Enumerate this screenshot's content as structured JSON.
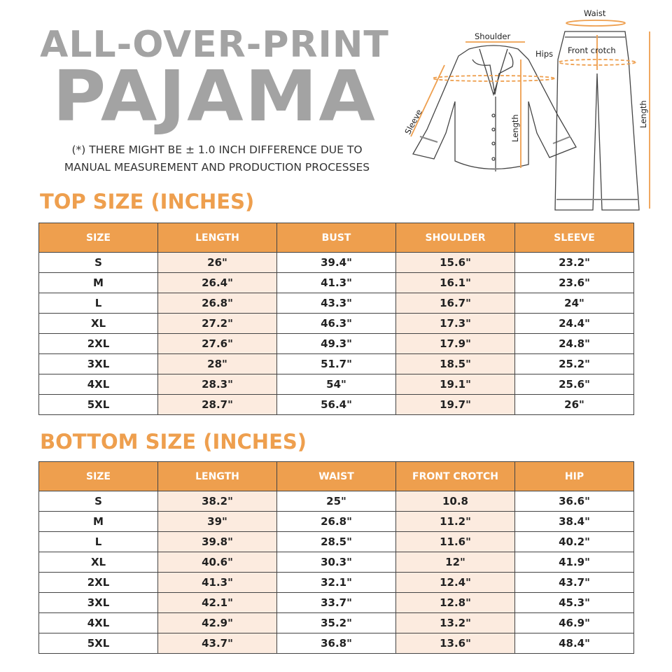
{
  "header": {
    "title_line1": "ALL-OVER-PRINT",
    "title_line2": "PAJAMA",
    "note_line1": "(*) THERE MIGHT BE ± 1.0 INCH DIFFERENCE DUE TO",
    "note_line2": "MANUAL MEASUREMENT AND PRODUCTION PROCESSES"
  },
  "diagram": {
    "labels": {
      "shoulder": "Shoulder",
      "sleeve": "Sleeve",
      "top_length": "Length",
      "waist": "Waist",
      "hips": "Hips",
      "front_crotch": "Front crotch",
      "bottom_length": "Length"
    }
  },
  "colors": {
    "accent": "#ee9f4e",
    "title_gray": "#a3a3a3",
    "shaded_column": "#fcebdf"
  },
  "top_table": {
    "title": "TOP SIZE (INCHES)",
    "headers": [
      "SIZE",
      "LENGTH",
      "BUST",
      "SHOULDER",
      "SLEEVE"
    ],
    "rows": [
      [
        "S",
        "26\"",
        "39.4\"",
        "15.6\"",
        "23.2\""
      ],
      [
        "M",
        "26.4\"",
        "41.3\"",
        "16.1\"",
        "23.6\""
      ],
      [
        "L",
        "26.8\"",
        "43.3\"",
        "16.7\"",
        "24\""
      ],
      [
        "XL",
        "27.2\"",
        "46.3\"",
        "17.3\"",
        "24.4\""
      ],
      [
        "2XL",
        "27.6\"",
        "49.3\"",
        "17.9\"",
        "24.8\""
      ],
      [
        "3XL",
        "28\"",
        "51.7\"",
        "18.5\"",
        "25.2\""
      ],
      [
        "4XL",
        "28.3\"",
        "54\"",
        "19.1\"",
        "25.6\""
      ],
      [
        "5XL",
        "28.7\"",
        "56.4\"",
        "19.7\"",
        "26\""
      ]
    ]
  },
  "bottom_table": {
    "title": "BOTTOM SIZE (INCHES)",
    "headers": [
      "SIZE",
      "LENGTH",
      "WAIST",
      "FRONT CROTCH",
      "HIP"
    ],
    "rows": [
      [
        "S",
        "38.2\"",
        "25\"",
        "10.8",
        "36.6\""
      ],
      [
        "M",
        "39\"",
        "26.8\"",
        "11.2\"",
        "38.4\""
      ],
      [
        "L",
        "39.8\"",
        "28.5\"",
        "11.6\"",
        "40.2\""
      ],
      [
        "XL",
        "40.6\"",
        "30.3\"",
        "12\"",
        "41.9\""
      ],
      [
        "2XL",
        "41.3\"",
        "32.1\"",
        "12.4\"",
        "43.7\""
      ],
      [
        "3XL",
        "42.1\"",
        "33.7\"",
        "12.8\"",
        "45.3\""
      ],
      [
        "4XL",
        "42.9\"",
        "35.2\"",
        "13.2\"",
        "46.9\""
      ],
      [
        "5XL",
        "43.7\"",
        "36.8\"",
        "13.6\"",
        "48.4\""
      ]
    ]
  }
}
